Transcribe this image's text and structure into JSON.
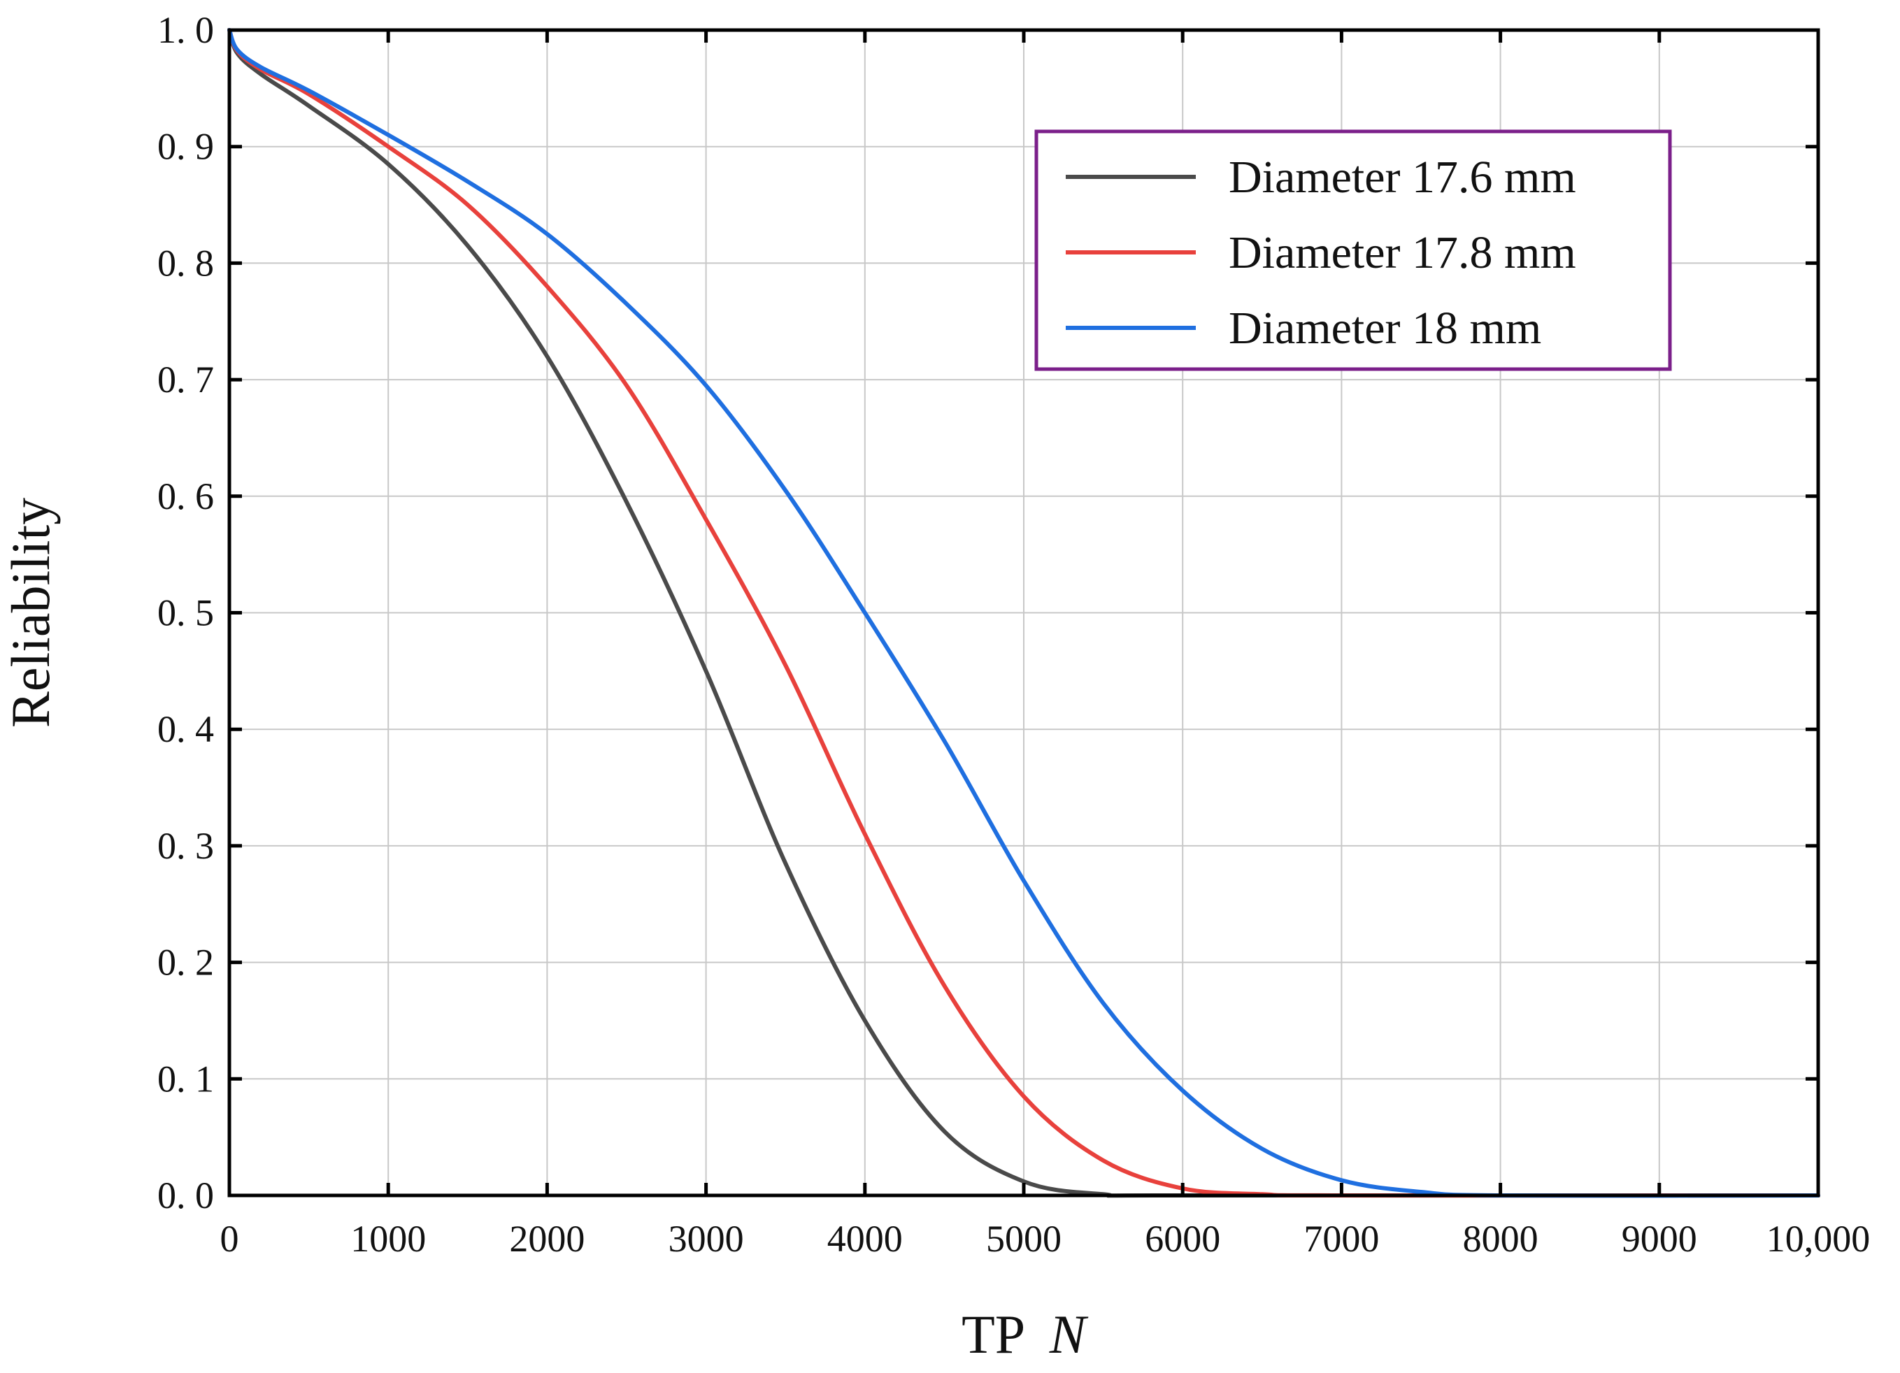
{
  "chart_data": {
    "type": "line",
    "title": "",
    "xlabel": "TP",
    "xlabel_var": "N",
    "ylabel": "Reliability",
    "xlim": [
      0,
      10000
    ],
    "ylim": [
      0,
      1
    ],
    "grid": true,
    "legend_position": "top-right",
    "legend_border_color": "#7b1f8a",
    "x_ticks": [
      0,
      1000,
      2000,
      3000,
      4000,
      5000,
      6000,
      7000,
      8000,
      9000,
      10000
    ],
    "x_tick_labels": [
      "0",
      "1000",
      "2000",
      "3000",
      "4000",
      "5000",
      "6000",
      "7000",
      "8000",
      "9000",
      "10,000"
    ],
    "y_ticks": [
      0,
      0.1,
      0.2,
      0.3,
      0.4,
      0.5,
      0.6,
      0.7,
      0.8,
      0.9,
      1.0
    ],
    "y_tick_labels": [
      "0. 0",
      "0. 1",
      "0. 2",
      "0. 3",
      "0. 4",
      "0. 5",
      "0. 6",
      "0. 7",
      "0. 8",
      "0. 9",
      "1. 0"
    ],
    "series": [
      {
        "name": "Diameter 17.6 mm",
        "color": "#4a4a4a",
        "x": [
          0,
          50,
          200,
          500,
          1000,
          1500,
          2000,
          2500,
          3000,
          3500,
          4000,
          4500,
          5000,
          5500,
          6000,
          10000
        ],
        "y": [
          1.0,
          0.98,
          0.962,
          0.935,
          0.885,
          0.815,
          0.72,
          0.595,
          0.45,
          0.285,
          0.15,
          0.055,
          0.012,
          0.001,
          0.0,
          0.0
        ]
      },
      {
        "name": "Diameter 17.8 mm",
        "color": "#e8413c",
        "x": [
          0,
          50,
          200,
          500,
          1000,
          1500,
          2000,
          2500,
          3000,
          3500,
          4000,
          4500,
          5000,
          5500,
          6000,
          6500,
          7000,
          10000
        ],
        "y": [
          1.0,
          0.982,
          0.966,
          0.945,
          0.9,
          0.85,
          0.78,
          0.695,
          0.58,
          0.455,
          0.31,
          0.18,
          0.085,
          0.03,
          0.006,
          0.001,
          0.0,
          0.0
        ]
      },
      {
        "name": "Diameter 18 mm",
        "color": "#1f6fe0",
        "x": [
          0,
          50,
          200,
          500,
          1000,
          1500,
          2000,
          2500,
          3000,
          3500,
          4000,
          4500,
          5000,
          5500,
          6000,
          6500,
          7000,
          7500,
          8000,
          10000
        ],
        "y": [
          1.0,
          0.983,
          0.968,
          0.948,
          0.91,
          0.87,
          0.825,
          0.765,
          0.695,
          0.605,
          0.5,
          0.39,
          0.27,
          0.165,
          0.09,
          0.04,
          0.013,
          0.003,
          0.0,
          0.0
        ]
      }
    ]
  }
}
